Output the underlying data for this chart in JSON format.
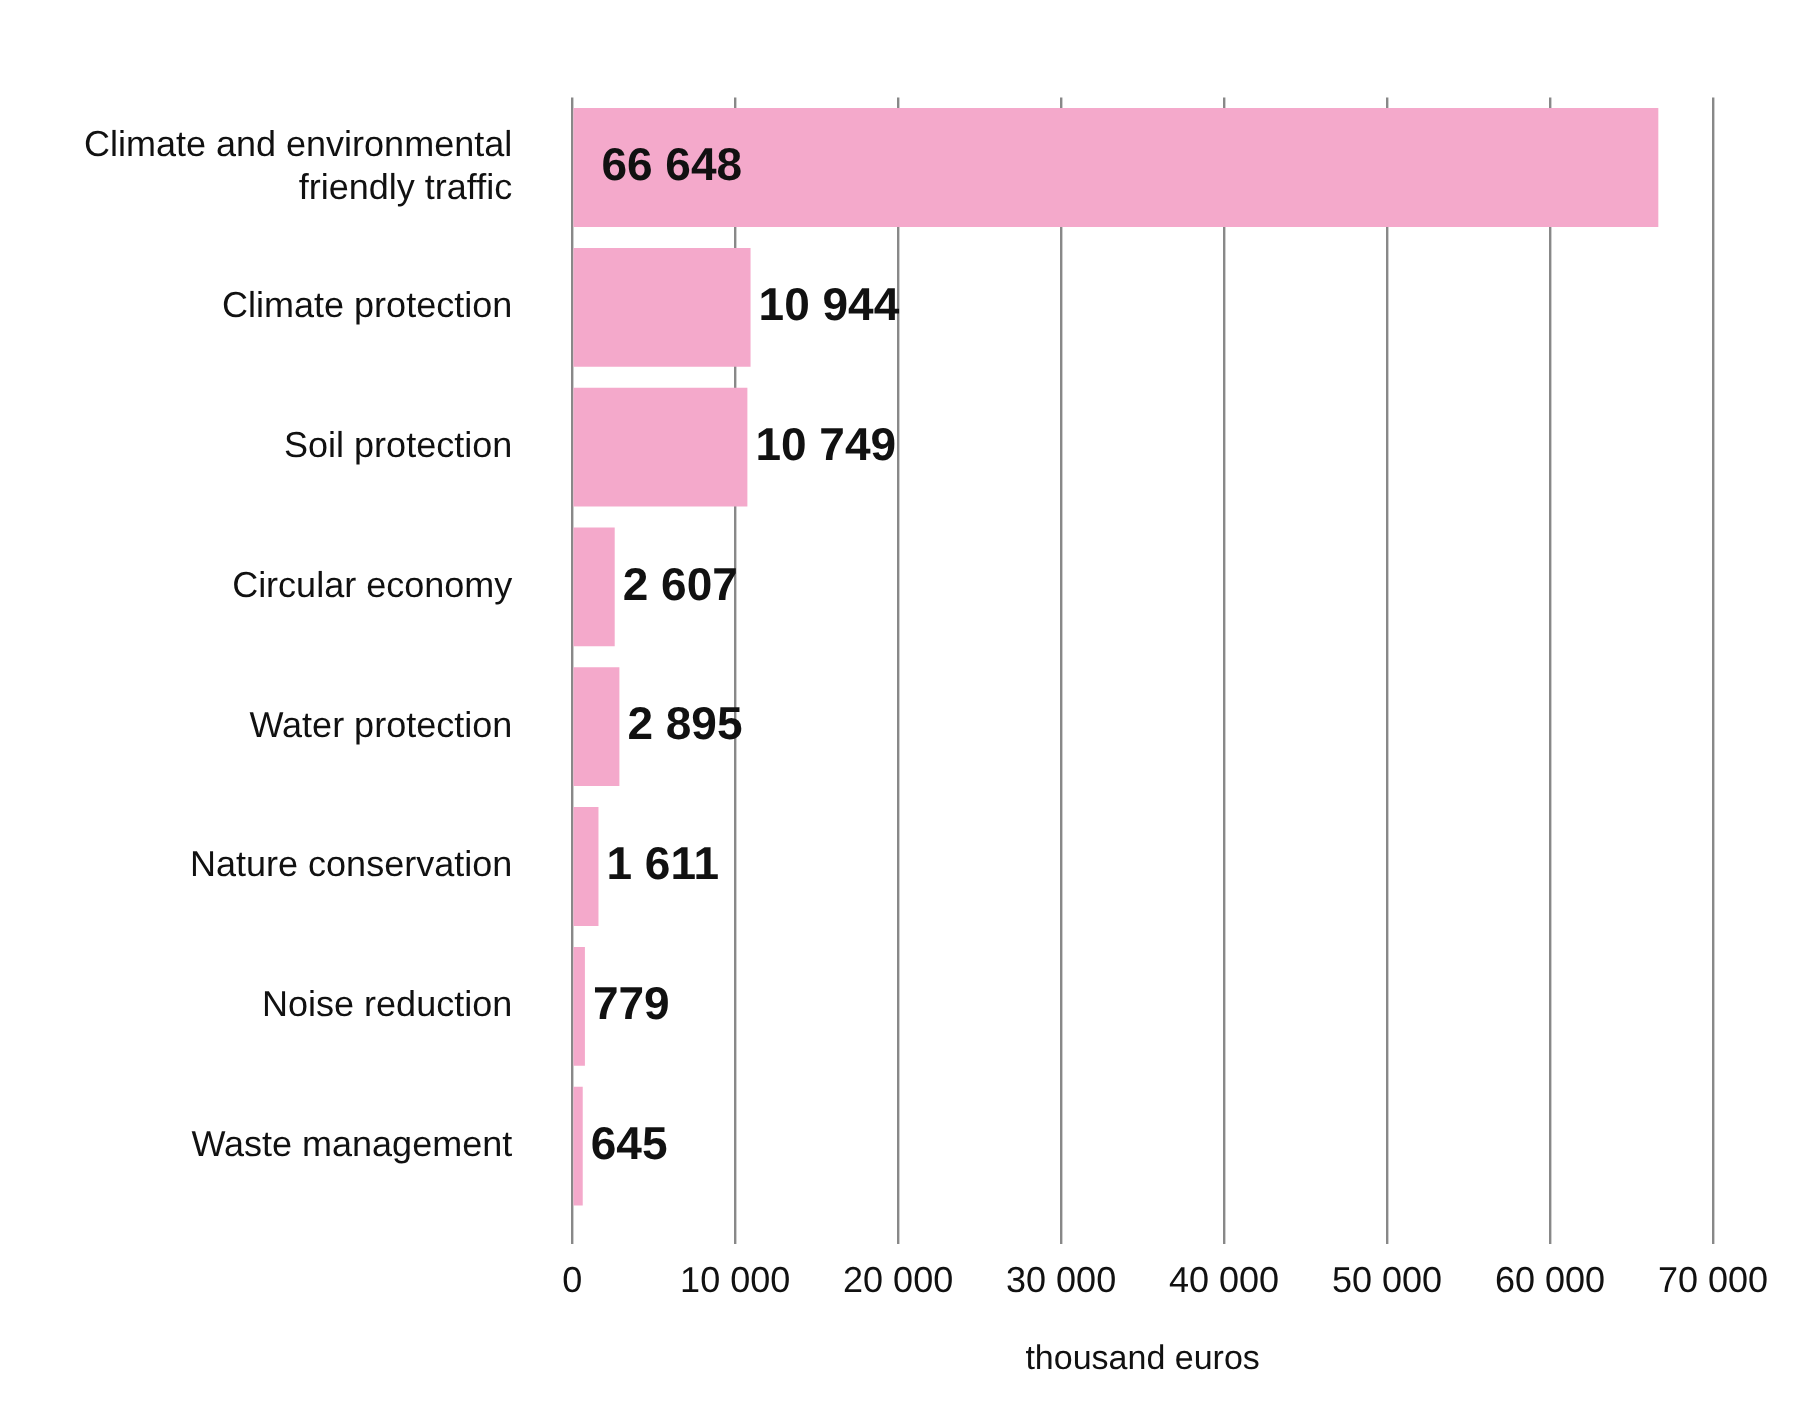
{
  "chart_data": {
    "type": "bar",
    "orientation": "horizontal",
    "xlabel": "thousand euros",
    "categories": [
      "Climate and environmental friendly traffic",
      "Climate protection",
      "Soil protection",
      "Circular economy",
      "Water protection",
      "Nature conservation",
      "Noise reduction",
      "Waste management"
    ],
    "values": [
      66648,
      10944,
      10749,
      2607,
      2895,
      1611,
      779,
      645
    ],
    "value_labels": [
      "66 648",
      "10 944",
      "10 749",
      "2 607",
      "2 895",
      "1 611",
      "779",
      "645"
    ],
    "color": "#f4a9cb",
    "xlim": [
      0,
      70000
    ],
    "xticks": [
      0,
      {
        "value": 10000,
        "label": "10 000"
      },
      {
        "value": 20000,
        "label": "20 000"
      },
      {
        "value": 30000,
        "label": "30 000"
      },
      {
        "value": 40000,
        "label": "40 000"
      },
      {
        "value": 50000,
        "label": "50 000"
      },
      {
        "value": 60000,
        "label": "60 000"
      },
      {
        "value": 70000,
        "label": "70 000"
      }
    ],
    "grid": "x",
    "legend": false
  }
}
